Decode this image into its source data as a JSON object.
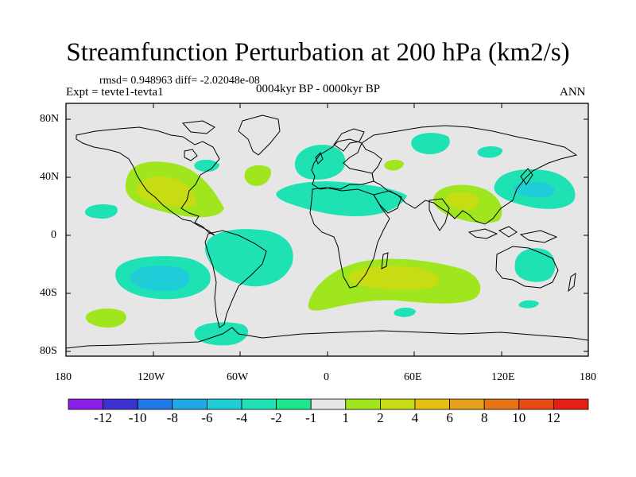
{
  "title": "Streamfunction Perturbation at 200 hPa (km2/s)",
  "stats": "rmsd= 0.948963 diff= -2.02048e-08",
  "experiment": "Expt = tevte1-tevta1",
  "period": "0004kyr BP - 0000kyr BP",
  "season": "ANN",
  "lat_ticks": [
    "80N",
    "40N",
    "0",
    "40S",
    "80S"
  ],
  "lon_ticks": [
    "180",
    "120W",
    "60W",
    "0",
    "60E",
    "120E",
    "180"
  ],
  "colorbar": {
    "levels": [
      "-12",
      "-10",
      "-8",
      "-6",
      "-4",
      "-2",
      "-1",
      "1",
      "2",
      "4",
      "6",
      "8",
      "10",
      "12"
    ],
    "colors": [
      "#8c1ee6",
      "#3c32d2",
      "#1e78e6",
      "#1eaae6",
      "#1ecdd7",
      "#1ee1b4",
      "#1ee68c",
      "#e6e6e6",
      "#a0e61e",
      "#c8dc14",
      "#e6be14",
      "#e6a01e",
      "#e67314",
      "#e64b14",
      "#e61e14"
    ]
  }
}
